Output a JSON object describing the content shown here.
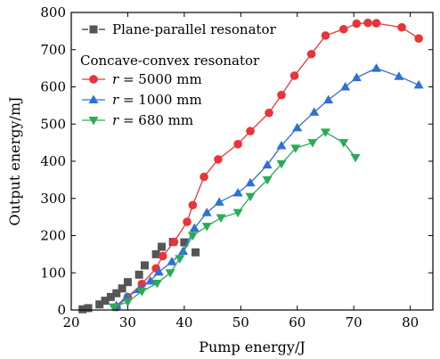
{
  "chart_data": {
    "type": "line",
    "xlabel": "Pump energy/J",
    "ylabel": "Output energy/mJ",
    "xlim": [
      20,
      84
    ],
    "ylim": [
      0,
      800
    ],
    "xticks": [
      20,
      30,
      40,
      50,
      60,
      70,
      80
    ],
    "yticks": [
      0,
      100,
      200,
      300,
      400,
      500,
      600,
      700,
      800
    ],
    "grid": false,
    "legend_position": "top-left",
    "legend_group_title": "Concave-convex resonator",
    "series": [
      {
        "name": "Plane-parallel resonator",
        "marker": "square",
        "color": "#555555",
        "line": false,
        "x": [
          22,
          23,
          25,
          26,
          27,
          28,
          29,
          30,
          32,
          33,
          35,
          36,
          38,
          40,
          42
        ],
        "y": [
          2,
          5,
          15,
          25,
          35,
          45,
          58,
          75,
          95,
          120,
          150,
          170,
          183,
          182,
          155
        ]
      },
      {
        "name": "r = 5000 mm",
        "name_parts": [
          "r",
          " = 5000 mm"
        ],
        "marker": "circle",
        "color": "#e8343a",
        "line": true,
        "x": [
          28,
          30,
          32.5,
          35,
          36.2,
          38.2,
          40.5,
          41.5,
          43.5,
          46,
          49.5,
          51.7,
          55,
          57.2,
          59.5,
          62.5,
          65,
          68.2,
          70.5,
          72.5,
          74,
          78.5,
          81.5
        ],
        "y": [
          8,
          35,
          70,
          112,
          145,
          183,
          237,
          282,
          358,
          405,
          446,
          481,
          530,
          578,
          630,
          688,
          738,
          755,
          770,
          772,
          771,
          760,
          730
        ]
      },
      {
        "name": "r = 1000 mm",
        "name_parts": [
          "r",
          " = 1000 mm"
        ],
        "marker": "triangle-up",
        "color": "#2f6fd6",
        "line": true,
        "x": [
          28,
          29.8,
          32,
          34,
          35.5,
          37.8,
          39.8,
          41.8,
          44,
          46.2,
          49.5,
          51.7,
          54.7,
          57.2,
          60,
          63,
          65.5,
          68.5,
          70.5,
          74,
          78,
          81.5
        ],
        "y": [
          12,
          35,
          55,
          78,
          102,
          130,
          158,
          220,
          262,
          290,
          315,
          342,
          390,
          442,
          490,
          532,
          565,
          600,
          625,
          650,
          628,
          605
        ]
      },
      {
        "name": "r = 680 mm",
        "name_parts": [
          "r",
          " = 680 mm"
        ],
        "marker": "triangle-down",
        "color": "#2bab57",
        "line": true,
        "x": [
          27.5,
          30,
          32.5,
          35.2,
          37.5,
          39.2,
          41.5,
          44,
          46.5,
          49.5,
          51.7,
          54.7,
          57.2,
          59.7,
          62.7,
          65,
          68.2,
          70.3
        ],
        "y": [
          8,
          22,
          50,
          72,
          100,
          138,
          200,
          225,
          248,
          262,
          305,
          350,
          393,
          435,
          450,
          478,
          450,
          410
        ]
      }
    ]
  }
}
